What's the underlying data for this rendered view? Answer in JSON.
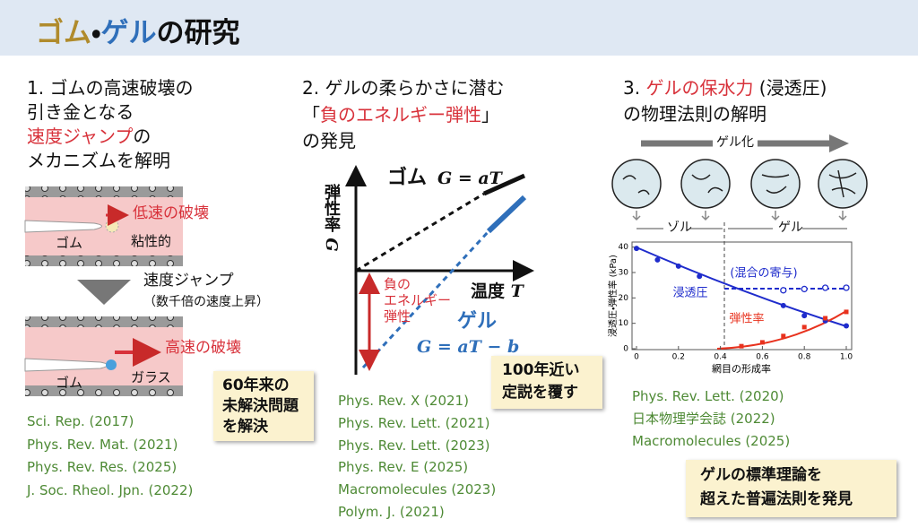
{
  "header": {
    "title": {
      "rubber": "ゴム",
      "dot": "・",
      "gel": "ゲル",
      "rest": "の研究"
    }
  },
  "panel1": {
    "heading": [
      "1. ゴムの高速破壊の",
      "引き金となる",
      "速度ジャンプ",
      "の",
      "メカニズムを解明"
    ],
    "labels": {
      "slow_fracture": "低速の破壊",
      "viscous": "粘性的",
      "rubber_top": "ゴム",
      "velocity_jump": "速度ジャンプ",
      "increase": "（数千倍の速度上昇）",
      "fast_fracture": "高速の破壊",
      "glass": "ガラス",
      "rubber_bottom": "ゴム"
    },
    "note": [
      "60年来の",
      "未解決問題",
      "を解決"
    ],
    "references": [
      "Sci. Rep. (2017)",
      "Phys. Rev. Mat. (2021)",
      "Phys. Rev. Res. (2025)",
      "J. Soc. Rheol. Jpn. (2022)"
    ]
  },
  "panel2": {
    "heading": [
      "2. ゲルの柔らかさに潜む",
      "「",
      "負のエネルギー弾性",
      "」",
      "の発見"
    ],
    "plot": {
      "ylabel": "弾性率",
      "ysymbol": "G",
      "xlabel": "温度",
      "xsymbol": "T",
      "rubber": "ゴム",
      "rubber_eq": "G = aT",
      "gel": "ゲル",
      "gel_eq": "G = aT − b",
      "negative": [
        "負の",
        "エネルギー",
        "弾性"
      ]
    },
    "note": [
      "100年近い",
      "定説を覆す"
    ],
    "references": [
      "Phys. Rev. X (2021)",
      "Phys. Rev. Lett. (2021)",
      "Phys. Rev. Lett. (2023)",
      "Phys. Rev. E (2025)",
      "Macromolecules (2023)",
      "Polym. J. (2021)"
    ]
  },
  "panel3": {
    "heading": [
      "3. ",
      "ゲルの保水力",
      " (浸透圧)",
      "の物理法則の解明"
    ],
    "gelation": "ゲル化",
    "sol": "ゾル",
    "gel": "ゲル",
    "chart_data": {
      "type": "scatter",
      "ylabel": "浸透圧・弾性率 (kPa)",
      "xlabel": "網目の形成率",
      "xlim": [
        0,
        1
      ],
      "ylim": [
        0,
        42
      ],
      "xticks": [
        0,
        0.2,
        0.4,
        0.6,
        0.8,
        {
          "value": 1,
          "label": "1.0"
        }
      ],
      "yticks": [
        0,
        10,
        20,
        30,
        40
      ],
      "series": [
        {
          "name": "浸透圧",
          "color": "#1f2ccc",
          "marker": "filled",
          "x": [
            0,
            0.1,
            0.2,
            0.3,
            0.7,
            0.8,
            0.9,
            1
          ],
          "values": [
            39.5,
            35,
            32.5,
            28.5,
            17,
            13,
            11,
            9
          ]
        },
        {
          "name": "弾性率",
          "color": "#e8321e",
          "marker": "square",
          "x": [
            0.5,
            0.6,
            0.7,
            0.8,
            0.9,
            1
          ],
          "values": [
            1,
            2.5,
            5,
            8.5,
            12,
            14.5
          ]
        },
        {
          "name": "(混合の寄与)",
          "color": "#1f2ccc",
          "marker": "open",
          "x": [
            0.7,
            0.8,
            0.9,
            1
          ],
          "values": [
            23,
            23.5,
            24,
            24
          ]
        }
      ]
    },
    "note": [
      "ゲルの標準理論を",
      "超えた普遍法則を発見"
    ],
    "references": [
      "Phys. Rev. Lett. (2020)",
      "日本物理学会誌 (2022)",
      "Macromolecules (2025)"
    ]
  }
}
